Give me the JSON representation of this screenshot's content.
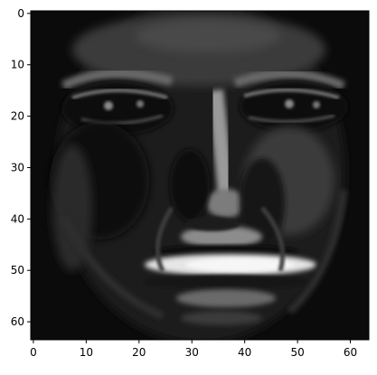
{
  "image": {
    "description_kind": "grayscale pixel grid (64x64)",
    "colormap": "gray",
    "background": "#000000",
    "subject_icon": "face-heatmap"
  },
  "axes": {
    "x_range": [
      0,
      63
    ],
    "y_range": [
      0,
      63
    ],
    "y_inverted": true,
    "x_ticks": [
      0,
      10,
      20,
      30,
      40,
      50,
      60
    ],
    "y_ticks": [
      0,
      10,
      20,
      30,
      40,
      50,
      60
    ],
    "x_tick_labels": [
      "0",
      "10",
      "20",
      "30",
      "40",
      "50",
      "60"
    ],
    "y_tick_labels": [
      "0",
      "10",
      "20",
      "30",
      "40",
      "50",
      "60"
    ],
    "grid": false
  },
  "colors": {
    "axis": "#000000",
    "text": "#000000"
  }
}
